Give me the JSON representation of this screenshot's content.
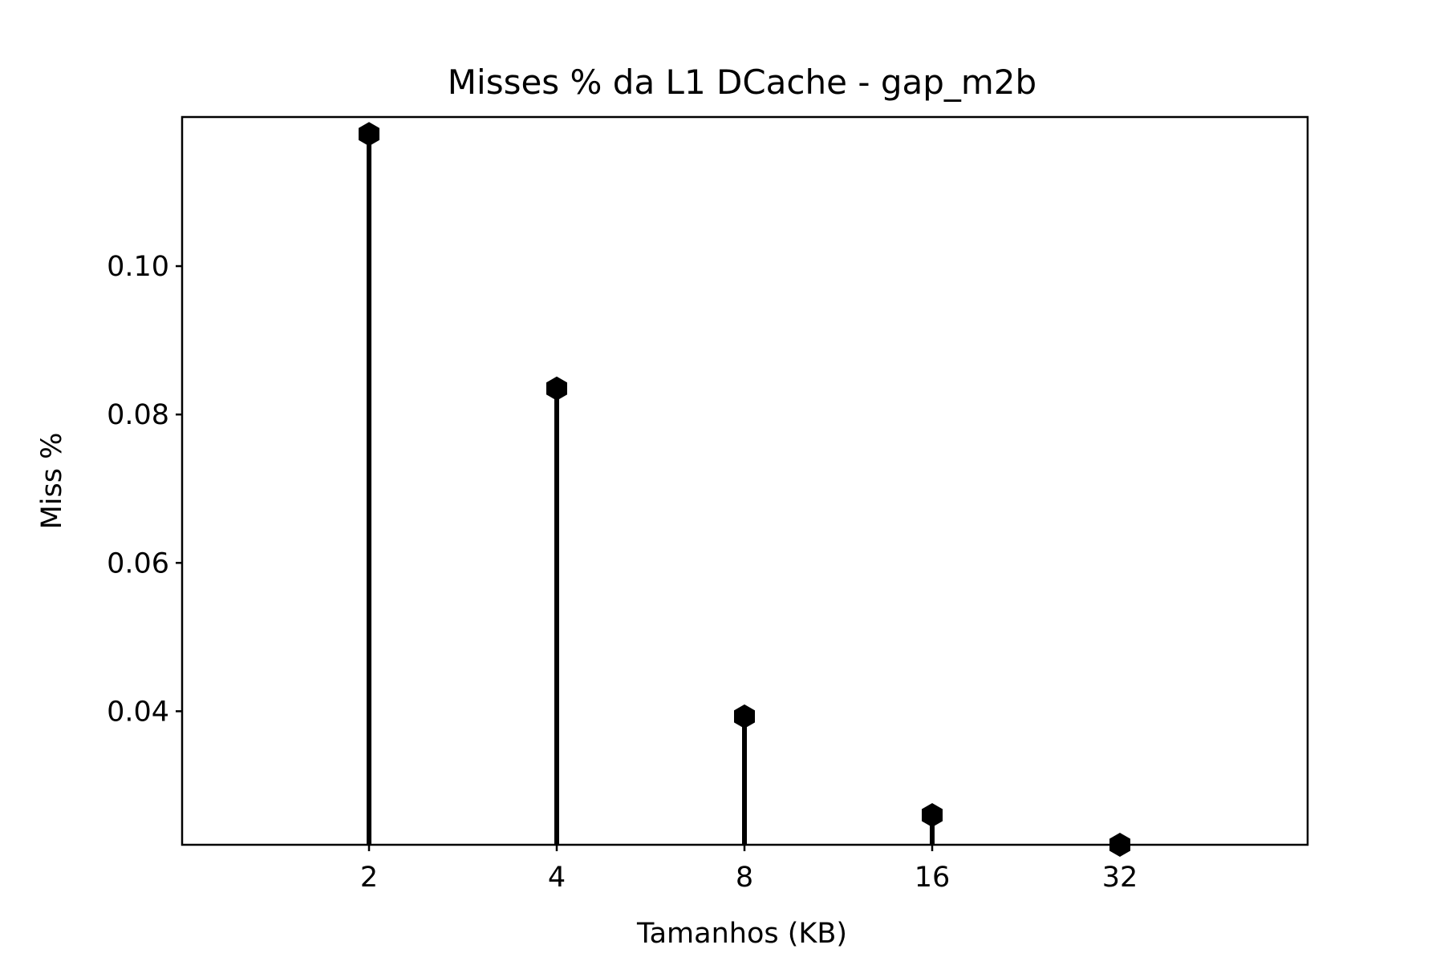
{
  "chart_data": {
    "type": "stem",
    "title": "Misses % da L1 DCache - gap_m2b",
    "xlabel": "Tamanhos (KB)",
    "ylabel": "Miss %",
    "categories": [
      "2",
      "4",
      "8",
      "16",
      "32"
    ],
    "values": [
      0.1178,
      0.0835,
      0.0393,
      0.026,
      0.022
    ],
    "ylim": [
      0.022,
      0.1201
    ],
    "yticks": [
      {
        "value": 0.04,
        "label": "0.04"
      },
      {
        "value": 0.06,
        "label": "0.06"
      },
      {
        "value": 0.08,
        "label": "0.08"
      },
      {
        "value": 0.1,
        "label": "0.10"
      }
    ],
    "grid": false,
    "legend": "none",
    "colors": {
      "stem": "#000000",
      "marker": "#000000",
      "axes": "#000000"
    },
    "marker": "hexagon"
  }
}
